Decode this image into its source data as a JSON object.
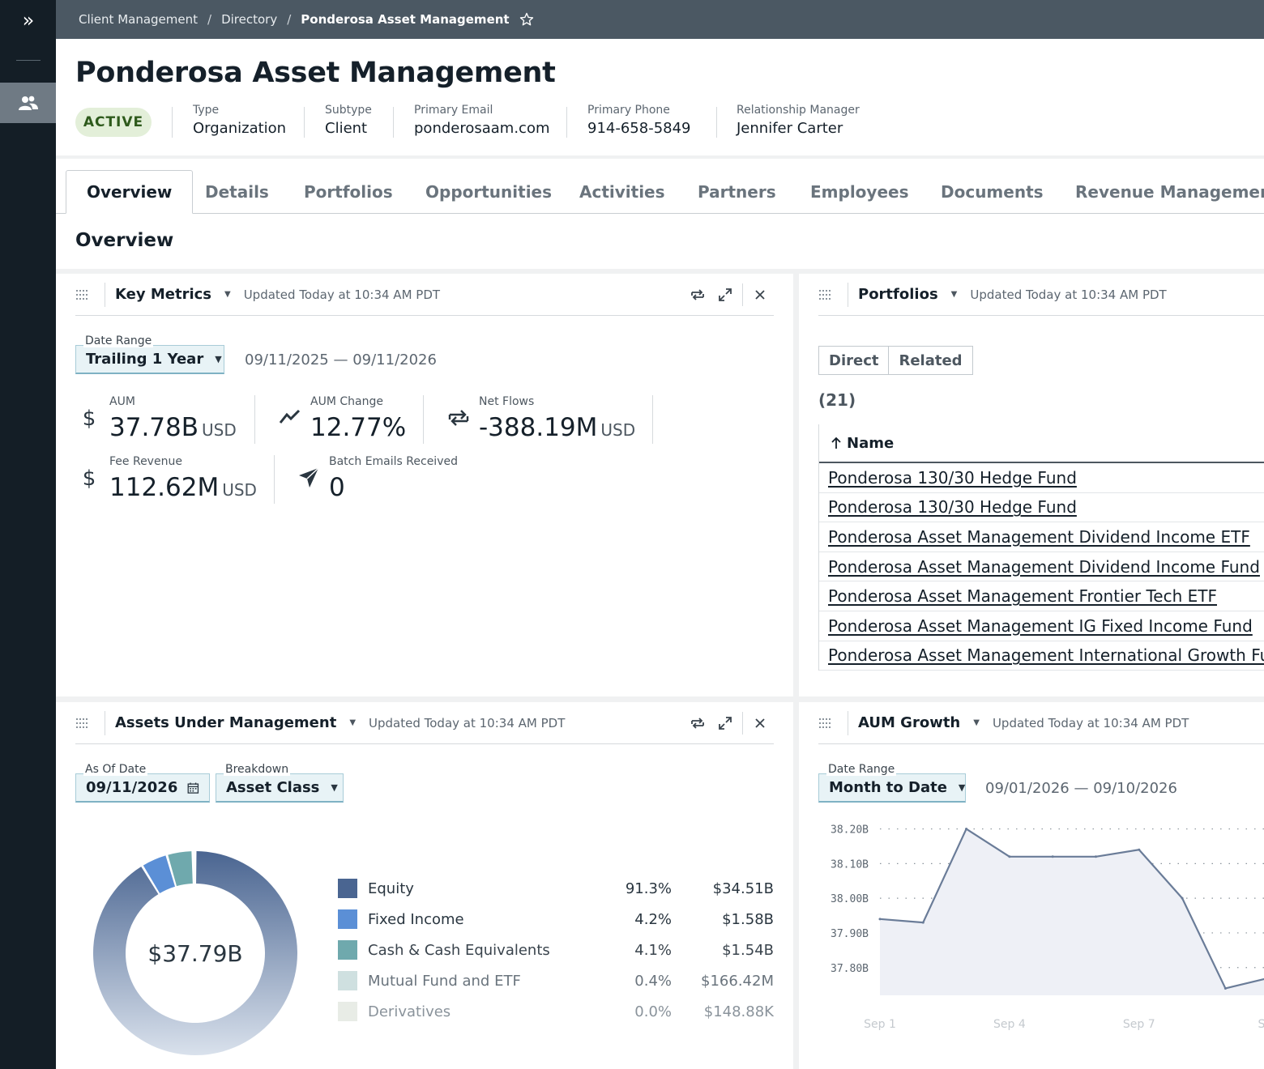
{
  "breadcrumb": {
    "items": [
      "Client Management",
      "Directory",
      "Ponderosa Asset Management"
    ]
  },
  "header": {
    "title": "Ponderosa Asset Management",
    "status": "ACTIVE",
    "attributes": [
      {
        "label": "Type",
        "value": "Organization"
      },
      {
        "label": "Subtype",
        "value": "Client"
      },
      {
        "label": "Primary Email",
        "value": "ponderosaam.com"
      },
      {
        "label": "Primary Phone",
        "value": "914-658-5849"
      },
      {
        "label": "Relationship Manager",
        "value": "Jennifer Carter"
      }
    ]
  },
  "tabs": [
    "Overview",
    "Details",
    "Portfolios",
    "Opportunities",
    "Activities",
    "Partners",
    "Employees",
    "Documents",
    "Revenue Management"
  ],
  "section_title": "Overview",
  "key_metrics": {
    "title": "Key Metrics",
    "updated": "Updated Today at 10:34 AM PDT",
    "date_range_label": "Date Range",
    "date_range_value": "Trailing 1 Year",
    "date_range_text": "09/11/2025 — 09/11/2026",
    "aum": {
      "label": "AUM",
      "value": "37.78B",
      "unit": "USD"
    },
    "aum_change": {
      "label": "AUM Change",
      "value": "12.77%"
    },
    "net_flows": {
      "label": "Net Flows",
      "value": "-388.19M",
      "unit": "USD"
    },
    "fee_revenue": {
      "label": "Fee Revenue",
      "value": "112.62M",
      "unit": "USD"
    },
    "batch_emails": {
      "label": "Batch Emails Received",
      "value": "0"
    }
  },
  "portfolios": {
    "title": "Portfolios",
    "updated": "Updated Today at 10:34 AM PDT",
    "toggle": [
      "Direct",
      "Related"
    ],
    "count": "(21)",
    "column": "Name",
    "rows": [
      "Ponderosa 130/30 Hedge Fund",
      "Ponderosa 130/30 Hedge Fund",
      "Ponderosa Asset Management Dividend Income ETF",
      "Ponderosa Asset Management Dividend Income Fund",
      "Ponderosa Asset Management Frontier Tech ETF",
      "Ponderosa Asset Management IG Fixed Income Fund",
      "Ponderosa Asset Management International Growth Fu"
    ]
  },
  "aum_panel": {
    "title": "Assets Under Management",
    "updated": "Updated Today at 10:34 AM PDT",
    "as_of_label": "As Of Date",
    "as_of_value": "09/11/2026",
    "breakdown_label": "Breakdown",
    "breakdown_value": "Asset Class",
    "total": "$37.79B"
  },
  "aum_growth": {
    "title": "AUM Growth",
    "updated": "Updated Today at 10:34 AM PDT",
    "date_range_label": "Date Range",
    "date_range_value": "Month to Date",
    "date_range_text": "09/01/2026 — 09/10/2026"
  },
  "colors": {
    "equity": "#4a6591",
    "fixed_income": "#5b8fd6",
    "cash": "#6fa9ad",
    "mutual_fund": "#cfe0e0",
    "derivatives": "#e8ece6",
    "accent": "#7fb2c4"
  },
  "chart_data": [
    {
      "type": "pie",
      "title": "",
      "center_label": "$37.79B",
      "categories": [
        "Equity",
        "Fixed Income",
        "Cash & Cash Equivalents",
        "Mutual Fund and ETF",
        "Derivatives"
      ],
      "values": [
        91.3,
        4.2,
        4.1,
        0.4,
        0.0
      ],
      "percent_labels": [
        "91.3%",
        "4.2%",
        "4.1%",
        "0.4%",
        "0.0%"
      ],
      "amount_labels": [
        "$34.51B",
        "$1.58B",
        "$1.54B",
        "$166.42M",
        "$148.88K"
      ],
      "colors": [
        "#4a6591",
        "#5b8fd6",
        "#6fa9ad",
        "#cfe0e0",
        "#e8ece6"
      ]
    },
    {
      "type": "area",
      "title": "",
      "xlabel": "",
      "ylabel": "",
      "x": [
        1,
        2,
        3,
        4,
        5,
        6,
        7,
        8,
        9,
        10
      ],
      "values": [
        37.94,
        37.93,
        38.2,
        38.12,
        38.12,
        38.12,
        38.14,
        38.0,
        37.74,
        37.77
      ],
      "ylim": [
        37.72,
        38.22
      ],
      "yticks": [
        38.2,
        38.1,
        38.0,
        37.9,
        37.8
      ],
      "ytick_labels": [
        "38.20B",
        "38.10B",
        "38.00B",
        "37.90B",
        "37.80B"
      ],
      "xticks": [
        1,
        4,
        7,
        10
      ],
      "xtick_labels": [
        "Sep 1",
        "Sep 4",
        "Sep 7",
        "Sep"
      ],
      "grid": true
    }
  ]
}
